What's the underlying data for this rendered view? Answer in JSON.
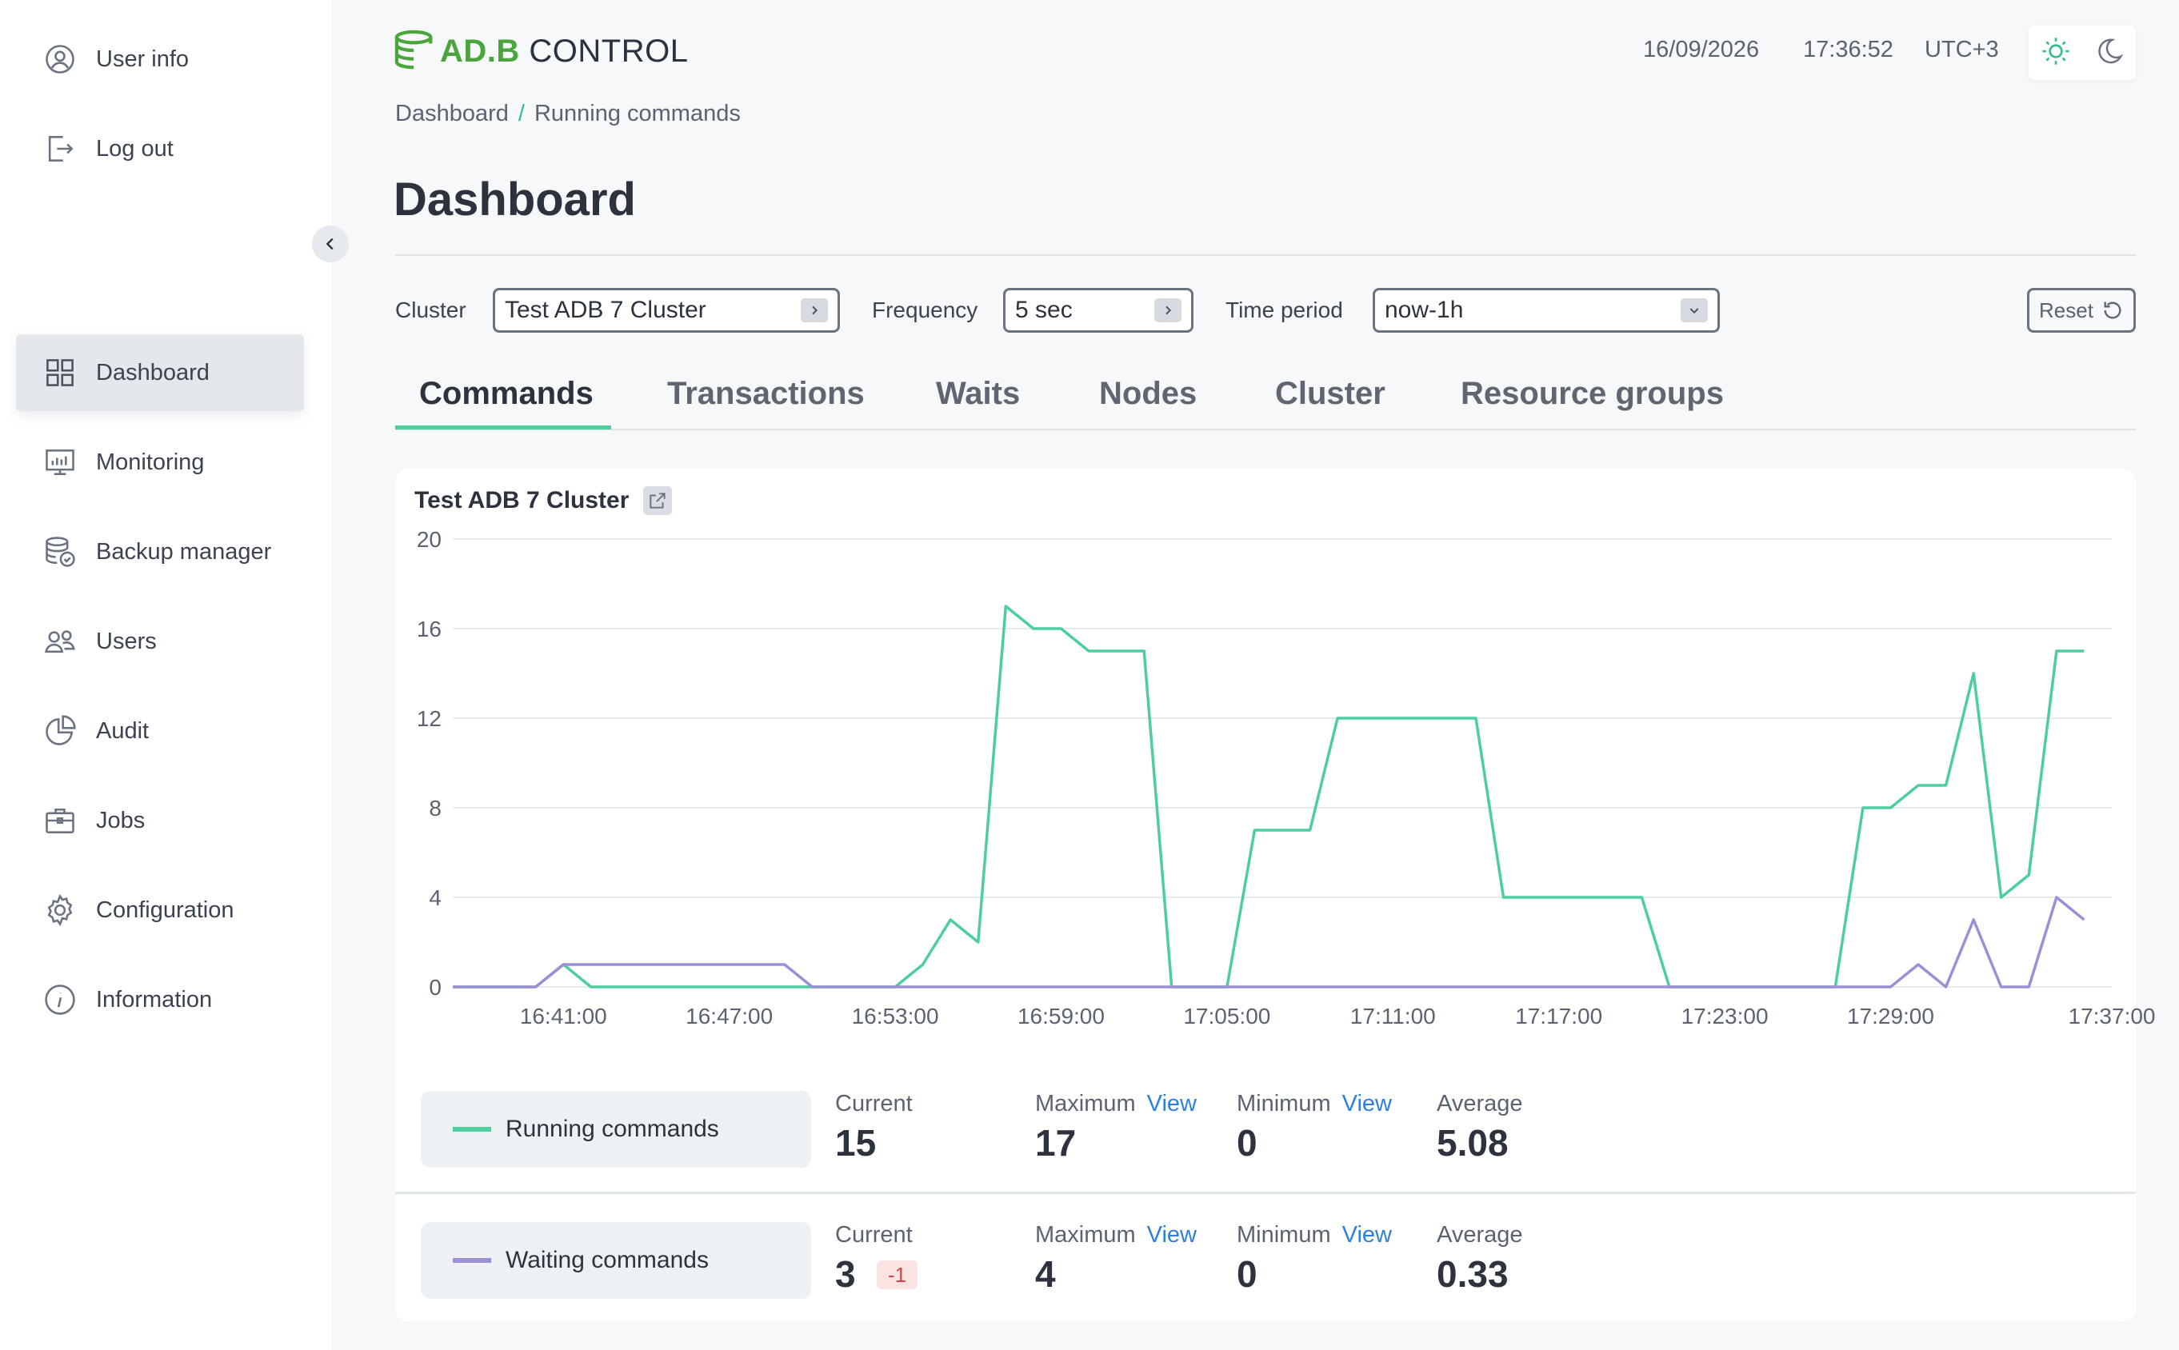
{
  "sidebar": {
    "top_items": [
      {
        "label": "User info",
        "icon": "user-circle-icon"
      },
      {
        "label": "Log out",
        "icon": "logout-icon"
      }
    ],
    "nav_items": [
      {
        "label": "Dashboard",
        "icon": "dashboard-grid-icon",
        "active": true
      },
      {
        "label": "Monitoring",
        "icon": "monitoring-icon"
      },
      {
        "label": "Backup manager",
        "icon": "backup-database-icon"
      },
      {
        "label": "Users",
        "icon": "users-icon"
      },
      {
        "label": "Audit",
        "icon": "pie-chart-icon"
      },
      {
        "label": "Jobs",
        "icon": "briefcase-icon"
      },
      {
        "label": "Configuration",
        "icon": "gear-icon"
      },
      {
        "label": "Information",
        "icon": "info-icon"
      }
    ]
  },
  "header": {
    "logo_green": "AD.B",
    "logo_dark": "CONTROL",
    "date": "16/09/2026",
    "time": "17:36:52",
    "timezone": "UTC+3"
  },
  "breadcrumb": {
    "root": "Dashboard",
    "separator": "/",
    "current": "Running commands"
  },
  "page_title": "Dashboard",
  "filters": {
    "cluster_label": "Cluster",
    "cluster_value": "Test ADB 7 Cluster",
    "frequency_label": "Frequency",
    "frequency_value": "5 sec",
    "period_label": "Time period",
    "period_value": "now-1h",
    "reset_label": "Reset"
  },
  "tabs": [
    {
      "label": "Commands",
      "active": true
    },
    {
      "label": "Transactions"
    },
    {
      "label": "Waits"
    },
    {
      "label": "Nodes"
    },
    {
      "label": "Cluster"
    },
    {
      "label": "Resource groups"
    }
  ],
  "card_title": "Test ADB 7 Cluster",
  "colors": {
    "running": "#4ccf9c",
    "waiting": "#9b8fd8",
    "accent": "#2fbf8c",
    "link": "#2d7fe0"
  },
  "chart_data": {
    "type": "line",
    "title": "",
    "xlabel": "",
    "ylabel": "",
    "ylim": [
      0,
      20
    ],
    "yticks": [
      0,
      4,
      8,
      12,
      16,
      20
    ],
    "xlim": [
      "16:37:00",
      "17:37:00"
    ],
    "xtick_labels": [
      "16:41:00",
      "16:47:00",
      "16:53:00",
      "16:59:00",
      "17:05:00",
      "17:11:00",
      "17:17:00",
      "17:23:00",
      "17:29:00",
      "17:37:00"
    ],
    "grid": true,
    "series": [
      {
        "name": "Running commands",
        "points": [
          [
            "16:37:00",
            0
          ],
          [
            "16:39:00",
            0
          ],
          [
            "16:40:00",
            0
          ],
          [
            "16:41:00",
            1
          ],
          [
            "16:42:00",
            0
          ],
          [
            "16:50:00",
            0
          ],
          [
            "16:53:00",
            0
          ],
          [
            "16:54:00",
            1
          ],
          [
            "16:55:00",
            3
          ],
          [
            "16:56:00",
            2
          ],
          [
            "16:57:00",
            17
          ],
          [
            "16:58:00",
            16
          ],
          [
            "16:59:00",
            16
          ],
          [
            "17:00:00",
            15
          ],
          [
            "17:02:00",
            15
          ],
          [
            "17:03:00",
            0
          ],
          [
            "17:05:00",
            0
          ],
          [
            "17:06:00",
            7
          ],
          [
            "17:08:00",
            7
          ],
          [
            "17:09:00",
            12
          ],
          [
            "17:14:00",
            12
          ],
          [
            "17:15:00",
            4
          ],
          [
            "17:20:00",
            4
          ],
          [
            "17:21:00",
            0
          ],
          [
            "17:27:00",
            0
          ],
          [
            "17:28:00",
            8
          ],
          [
            "17:29:00",
            8
          ],
          [
            "17:30:00",
            9
          ],
          [
            "17:31:00",
            9
          ],
          [
            "17:32:00",
            14
          ],
          [
            "17:33:00",
            4
          ],
          [
            "17:34:00",
            5
          ],
          [
            "17:35:00",
            15
          ],
          [
            "17:36:00",
            15
          ]
        ]
      },
      {
        "name": "Waiting commands",
        "points": [
          [
            "16:37:00",
            0
          ],
          [
            "16:40:00",
            0
          ],
          [
            "16:41:00",
            1
          ],
          [
            "16:49:00",
            1
          ],
          [
            "16:50:00",
            0
          ],
          [
            "17:29:00",
            0
          ],
          [
            "17:30:00",
            1
          ],
          [
            "17:31:00",
            0
          ],
          [
            "17:32:00",
            3
          ],
          [
            "17:33:00",
            0
          ],
          [
            "17:34:00",
            0
          ],
          [
            "17:35:00",
            4
          ],
          [
            "17:36:00",
            3
          ]
        ]
      }
    ]
  },
  "stats": [
    {
      "name": "Running commands",
      "current_label": "Current",
      "current": "15",
      "max_label": "Maximum",
      "max": "17",
      "min_label": "Minimum",
      "min": "0",
      "avg_label": "Average",
      "avg": "5.08",
      "view_label": "View"
    },
    {
      "name": "Waiting commands",
      "current_label": "Current",
      "current": "3",
      "delta": "-1",
      "max_label": "Maximum",
      "max": "4",
      "min_label": "Minimum",
      "min": "0",
      "avg_label": "Average",
      "avg": "0.33",
      "view_label": "View"
    }
  ]
}
